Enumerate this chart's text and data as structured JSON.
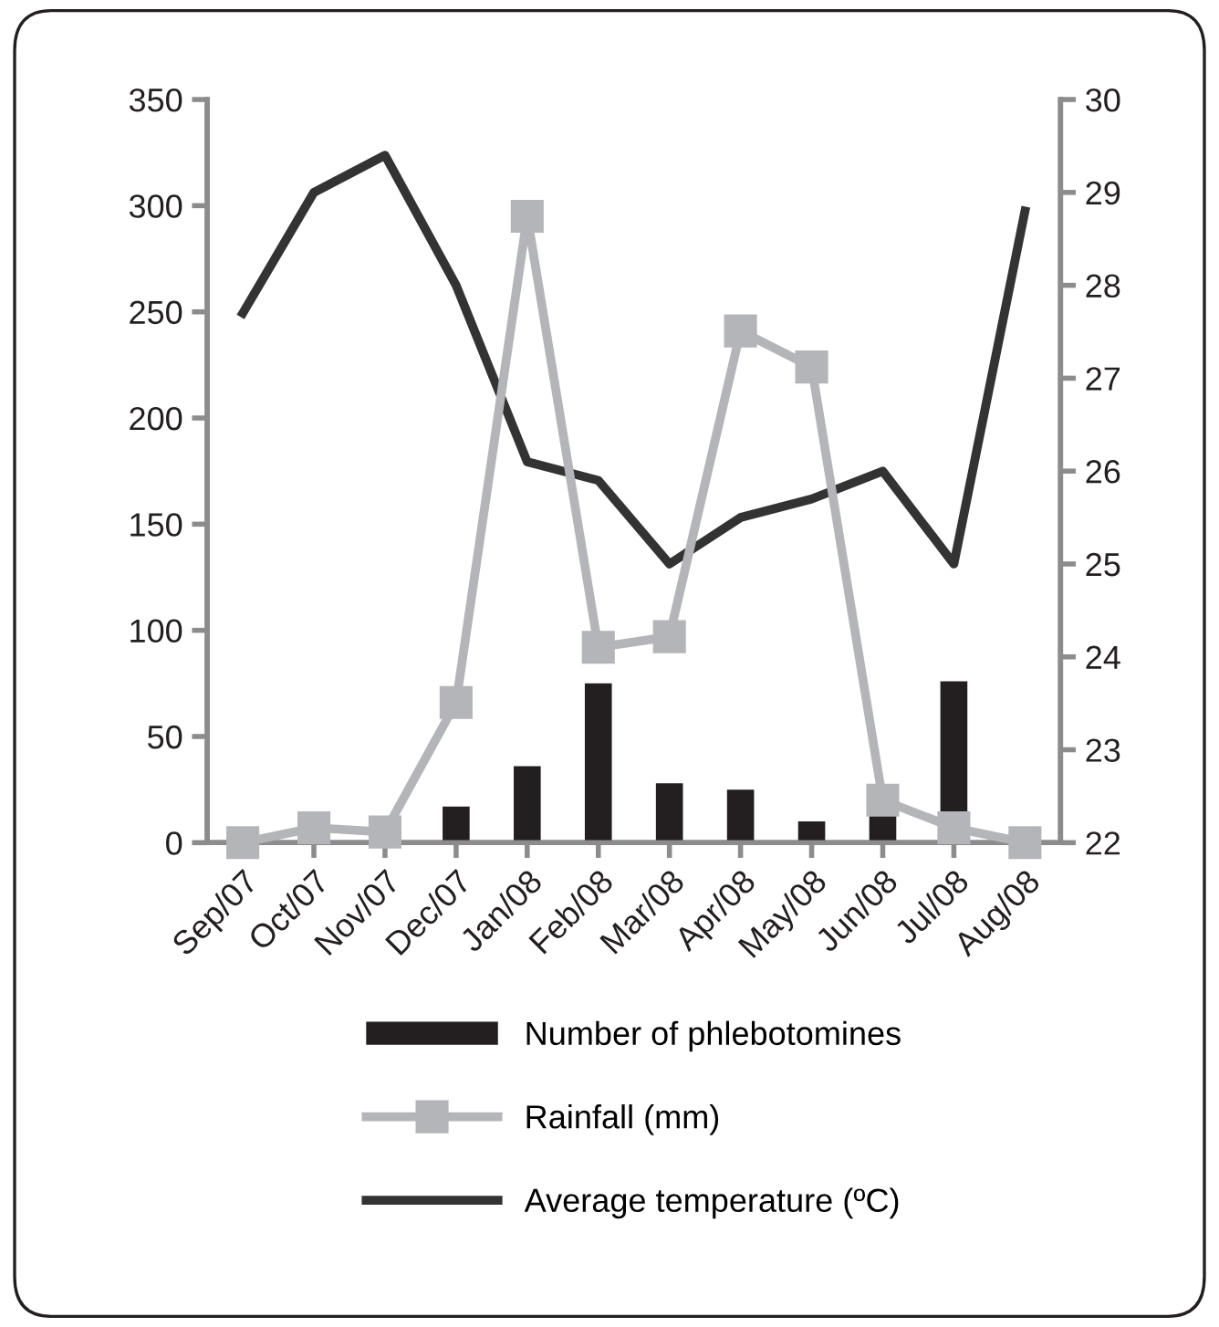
{
  "chart_data": {
    "type": "bar",
    "categories": [
      "Sep/07",
      "Oct/07",
      "Nov/07",
      "Dec/07",
      "Jan/08",
      "Feb/08",
      "Mar/08",
      "Apr/08",
      "May/08",
      "Jun/08",
      "Jul/08",
      "Aug/08"
    ],
    "series": [
      {
        "name": "Number of phlebotomines",
        "color": "#231f20",
        "values": [
          0,
          0,
          0,
          17,
          36,
          75,
          28,
          25,
          10,
          13,
          76,
          0
        ]
      },
      {
        "name": "Rainfall (mm)",
        "type": "line",
        "color": "#b4b5b8",
        "marker": "square",
        "values": [
          0,
          7,
          5,
          66,
          295,
          92,
          97,
          241,
          224,
          20,
          7,
          0
        ]
      },
      {
        "name": "Average temperature (ºC)",
        "type": "line",
        "color": "#333333",
        "axis": "y2",
        "marker": "none",
        "values": [
          27.7,
          29.0,
          29.4,
          28.0,
          26.1,
          25.9,
          25.0,
          25.5,
          25.7,
          26.0,
          25.0,
          28.8
        ]
      }
    ],
    "ylim": [
      0,
      350
    ],
    "yticks": [
      0,
      50,
      100,
      150,
      200,
      250,
      300,
      350
    ],
    "y2lim": [
      22,
      30
    ],
    "y2ticks": [
      22,
      23,
      24,
      25,
      26,
      27,
      28,
      29,
      30
    ],
    "grid": false,
    "legend": "bottom"
  }
}
